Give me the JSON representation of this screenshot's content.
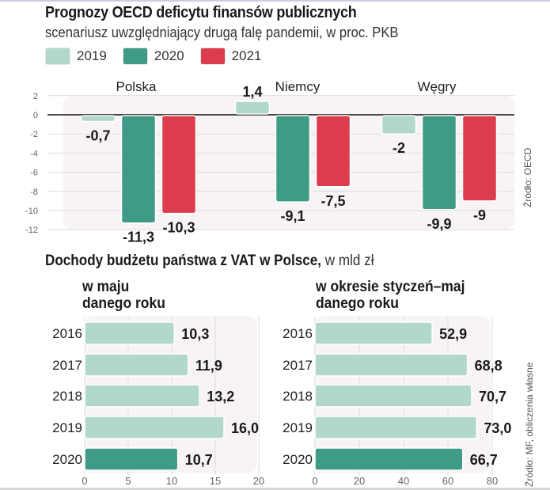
{
  "colors": {
    "c2019": "#b2d8cb",
    "c2020": "#3f9a86",
    "c2021": "#dc3d4c",
    "grid": "#dcdcdc",
    "panel": "#f8f4f6"
  },
  "header": {
    "title": "Prognozy OECD deficytu finansów publicznych",
    "subtitle": "scenariusz uwzględniający drugą falę pandemii, w proc. PKB"
  },
  "legend": [
    {
      "label": "2019",
      "color": "#b2d8cb"
    },
    {
      "label": "2020",
      "color": "#3f9a86"
    },
    {
      "label": "2021",
      "color": "#dc3d4c"
    }
  ],
  "source_top": "Źródło: OECD",
  "section2": {
    "title_bold": "Dochody budżetu państwa z VAT w Polsce,",
    "title_light": " w mld zł",
    "left_sub": [
      "w maju",
      "danego roku"
    ],
    "right_sub": [
      "w okresie styczeń–maj",
      "danego roku"
    ]
  },
  "source_bottom": "Źródło: MF, obliczenia własne",
  "chart_data": [
    {
      "type": "bar",
      "title": "Prognozy OECD deficytu finansów publicznych",
      "subtitle": "scenariusz uwzględniający drugą falę pandemii, w proc. PKB",
      "categories": [
        "Polska",
        "Niemcy",
        "Węgry"
      ],
      "series": [
        {
          "name": "2019",
          "values": [
            -0.7,
            1.4,
            -2
          ],
          "labels": [
            "-0,7",
            "1,4",
            "-2"
          ]
        },
        {
          "name": "2020",
          "values": [
            -11.3,
            -9.1,
            -9.9
          ],
          "labels": [
            "-11,3",
            "-9,1",
            "-9,9"
          ]
        },
        {
          "name": "2021",
          "values": [
            -10.3,
            -7.5,
            -9
          ],
          "labels": [
            "-10,3",
            "-7,5",
            "-9"
          ]
        }
      ],
      "yticks": [
        2,
        0,
        -2,
        -4,
        -6,
        -8,
        -10,
        -12
      ],
      "ylim": [
        -12,
        2
      ],
      "grid": true,
      "legend": "top-left",
      "xlabel": "",
      "ylabel": ""
    },
    {
      "type": "bar",
      "orientation": "horizontal",
      "title": "w maju danego roku",
      "categories": [
        "2016",
        "2017",
        "2018",
        "2019",
        "2020"
      ],
      "values": [
        10.3,
        11.9,
        13.2,
        16.0,
        10.7
      ],
      "labels": [
        "10,3",
        "11,9",
        "13,2",
        "16,0",
        "10,7"
      ],
      "highlight": [
        false,
        false,
        false,
        false,
        true
      ],
      "xticks": [
        0,
        5,
        10,
        15,
        20
      ],
      "xlim": [
        0,
        20
      ],
      "grid": true
    },
    {
      "type": "bar",
      "orientation": "horizontal",
      "title": "w okresie styczeń–maj danego roku",
      "categories": [
        "2016",
        "2017",
        "2018",
        "2019",
        "2020"
      ],
      "values": [
        52.9,
        68.8,
        70.7,
        73.0,
        66.7
      ],
      "labels": [
        "52,9",
        "68,8",
        "70,7",
        "73,0",
        "66,7"
      ],
      "highlight": [
        false,
        false,
        false,
        false,
        true
      ],
      "xticks": [
        0,
        20,
        40,
        60,
        80
      ],
      "xlim": [
        0,
        80
      ],
      "grid": true
    }
  ]
}
